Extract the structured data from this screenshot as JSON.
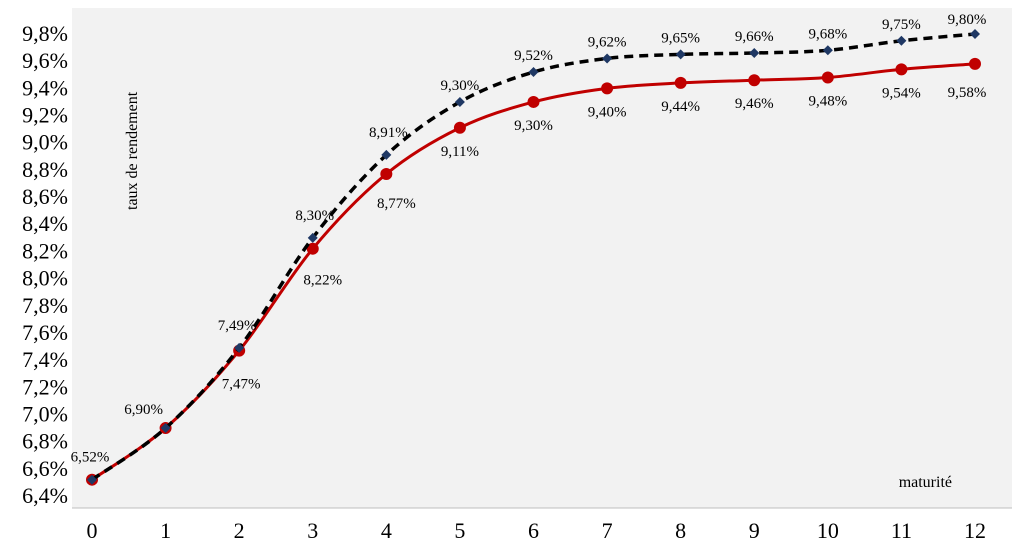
{
  "chart_data": {
    "type": "line",
    "title": "",
    "xlabel": "maturité",
    "ylabel": "taux de rendement",
    "x": [
      0,
      1,
      2,
      3,
      4,
      5,
      6,
      7,
      8,
      9,
      10,
      11,
      12
    ],
    "xlim": [
      0,
      12
    ],
    "ylim": [
      6.4,
      9.8
    ],
    "ytick_step": 0.2,
    "grid": false,
    "legend": "none",
    "series": [
      {
        "color": "#c00000",
        "line_style": "solid",
        "marker": "circle",
        "values": [
          6.52,
          6.9,
          7.47,
          8.22,
          8.77,
          9.11,
          9.3,
          9.4,
          9.44,
          9.46,
          9.48,
          9.54,
          9.58
        ],
        "labels": [
          "6,52%",
          "6,90%",
          "7,47%",
          "8,22%",
          "8,77%",
          "9,11%",
          "9,30%",
          "9,40%",
          "9,44%",
          "9,46%",
          "9,48%",
          "9,54%",
          "9,58%"
        ]
      },
      {
        "color": "#000000",
        "marker_color": "#1f3864",
        "line_style": "dashed",
        "marker": "diamond",
        "values": [
          6.52,
          6.9,
          7.49,
          8.3,
          8.91,
          9.3,
          9.52,
          9.62,
          9.65,
          9.66,
          9.68,
          9.75,
          9.8
        ],
        "labels": [
          "6,52%",
          "6,90%",
          "7,49%",
          "8,30%",
          "8,91%",
          "9,30%",
          "9,52%",
          "9,62%",
          "9,65%",
          "9,66%",
          "9,68%",
          "9,75%",
          "9,80%"
        ]
      }
    ],
    "colors": {
      "plot_background": "#f2f2f2",
      "axis": "#bfbfbf"
    }
  }
}
